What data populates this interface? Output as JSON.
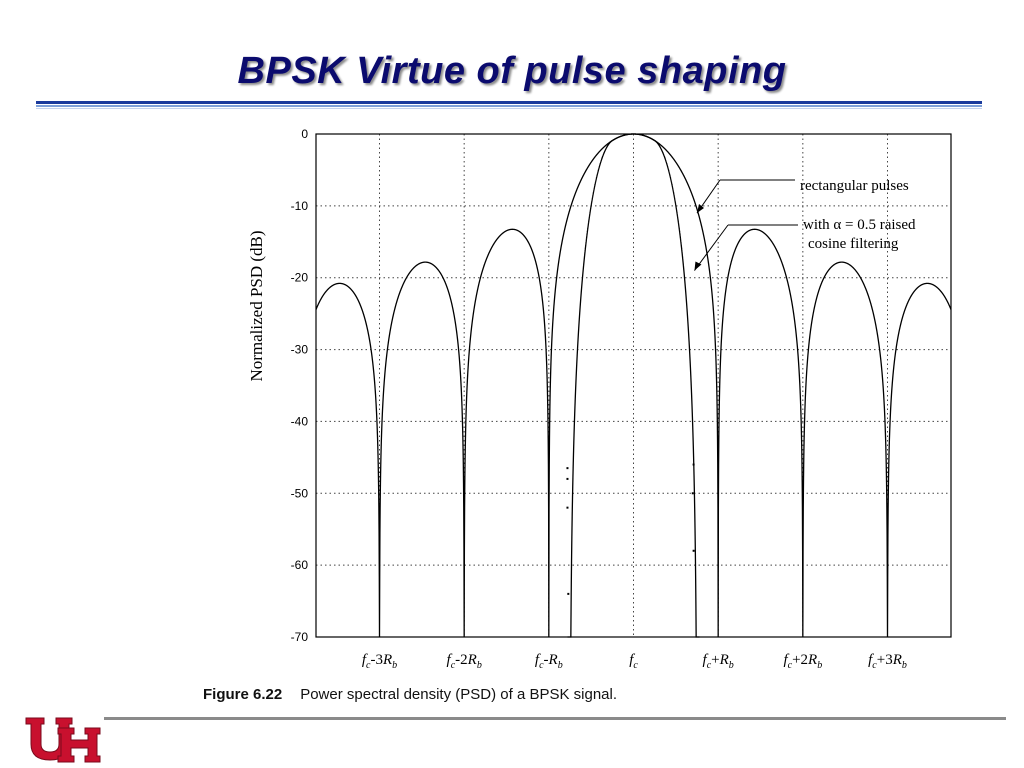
{
  "slide": {
    "title": "BPSK Virtue of pulse shaping"
  },
  "figure": {
    "label": "Figure 6.22",
    "caption": "Power spectral density (PSD) of a BPSK signal."
  },
  "logo": {
    "text": "UH",
    "color": "#c8102e"
  },
  "colors": {
    "title": "#0b0b6e",
    "rule": "#1a3a9c",
    "curve": "#000000",
    "grid": "#444444"
  },
  "chart_data": {
    "type": "line",
    "ylabel": "Normalized PSD (dB)",
    "xlabel": "",
    "ylim": [
      -70,
      0
    ],
    "yticks": [
      "0",
      "-10",
      "-20",
      "-30",
      "-40",
      "-50",
      "-60",
      "-70"
    ],
    "xlim": [
      -3.75,
      3.75
    ],
    "xunit": "R_b offset from f_c",
    "xticks": [
      {
        "value": -3,
        "base": "f",
        "sub": "c",
        "mid": "-3",
        "term": "R",
        "tsub": "b"
      },
      {
        "value": -2,
        "base": "f",
        "sub": "c",
        "mid": "-2",
        "term": "R",
        "tsub": "b"
      },
      {
        "value": -1,
        "base": "f",
        "sub": "c",
        "mid": "-",
        "term": "R",
        "tsub": "b"
      },
      {
        "value": 0,
        "base": "f",
        "sub": "c",
        "mid": "",
        "term": "",
        "tsub": ""
      },
      {
        "value": 1,
        "base": "f",
        "sub": "c",
        "mid": "+",
        "term": "R",
        "tsub": "b"
      },
      {
        "value": 2,
        "base": "f",
        "sub": "c",
        "mid": "+2",
        "term": "R",
        "tsub": "b"
      },
      {
        "value": 3,
        "base": "f",
        "sub": "c",
        "mid": "+3",
        "term": "R",
        "tsub": "b"
      }
    ],
    "grid": true,
    "series": [
      {
        "name": "rectangular pulses",
        "function": "10*log10(sinc^2(f/Rb))",
        "floor_db": -70
      },
      {
        "name": "with α = 0.5 raised cosine filtering",
        "cutoff": 0.75,
        "rolloff": 0.5
      }
    ],
    "annotations": [
      {
        "text": "rectangular pulses",
        "target_x": 0.75,
        "target_y": -11
      },
      {
        "lines": [
          "with α = 0.5 raised",
          "cosine filtering"
        ],
        "target_x": 0.72,
        "target_y": -19
      }
    ],
    "dotted_marks": [
      {
        "x": -0.78,
        "y": -46.5
      },
      {
        "x": -0.78,
        "y": -48.0
      },
      {
        "x": -0.78,
        "y": -52.0
      },
      {
        "x": -0.77,
        "y": -64.0
      },
      {
        "x": 0.71,
        "y": -46.0
      },
      {
        "x": 0.7,
        "y": -50.0
      },
      {
        "x": 0.71,
        "y": -58.0
      }
    ]
  }
}
